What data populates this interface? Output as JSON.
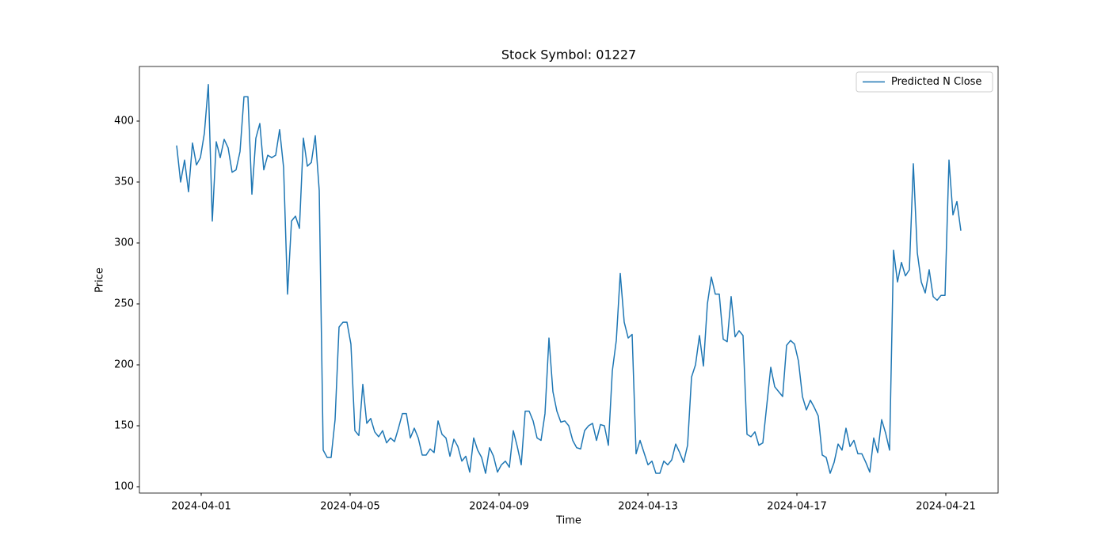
{
  "chart_data": {
    "type": "line",
    "title": "Stock Symbol: 01227",
    "xlabel": "Time",
    "ylabel": "Price",
    "series": [
      {
        "name": "Predicted N Close",
        "color": "#1f77b4",
        "values": [
          380,
          350,
          368,
          342,
          382,
          364,
          370,
          390,
          430,
          318,
          383,
          370,
          385,
          378,
          358,
          360,
          375,
          420,
          420,
          340,
          386,
          398,
          360,
          372,
          370,
          372,
          393,
          362,
          258,
          318,
          322,
          312,
          386,
          363,
          366,
          388,
          343,
          130,
          124,
          124,
          155,
          231,
          235,
          235,
          217,
          146,
          142,
          184,
          152,
          156,
          145,
          141,
          146,
          136,
          140,
          137,
          148,
          160,
          160,
          140,
          148,
          140,
          126,
          126,
          131,
          128,
          154,
          143,
          140,
          125,
          139,
          133,
          121,
          125,
          112,
          140,
          130,
          124,
          111,
          132,
          125,
          112,
          118,
          121,
          116,
          146,
          133,
          118,
          162,
          162,
          154,
          140,
          138,
          160,
          222,
          178,
          162,
          153,
          154,
          150,
          138,
          132,
          131,
          146,
          150,
          152,
          138,
          151,
          150,
          134,
          195,
          220,
          275,
          235,
          222,
          225,
          127,
          138,
          128,
          118,
          121,
          111,
          111,
          121,
          118,
          122,
          135,
          128,
          120,
          134,
          190,
          200,
          224,
          199,
          250,
          272,
          258,
          258,
          221,
          219,
          256,
          223,
          228,
          224,
          143,
          141,
          145,
          134,
          136,
          167,
          198,
          182,
          178,
          174,
          216,
          220,
          217,
          203,
          174,
          163,
          171,
          165,
          158,
          126,
          124,
          111,
          120,
          135,
          130,
          148,
          133,
          138,
          127,
          127,
          120,
          112,
          140,
          128,
          155,
          144,
          130,
          294,
          268,
          284,
          273,
          278,
          365,
          292,
          268,
          259,
          278,
          256,
          253,
          257,
          257,
          368,
          323,
          334,
          310
        ]
      }
    ],
    "xlim": [
      -9.4,
      207.4
    ],
    "xticks": [
      {
        "value": 6.2,
        "label": "2024-04-01"
      },
      {
        "value": 43.8,
        "label": "2024-04-05"
      },
      {
        "value": 81.4,
        "label": "2024-04-09"
      },
      {
        "value": 119,
        "label": "2024-04-13"
      },
      {
        "value": 156.6,
        "label": "2024-04-17"
      },
      {
        "value": 194.2,
        "label": "2024-04-21"
      }
    ],
    "ylim": [
      94.8,
      444.8
    ],
    "yticks": [
      100,
      150,
      200,
      250,
      300,
      350,
      400
    ],
    "grid": false,
    "legend": "upper right"
  }
}
